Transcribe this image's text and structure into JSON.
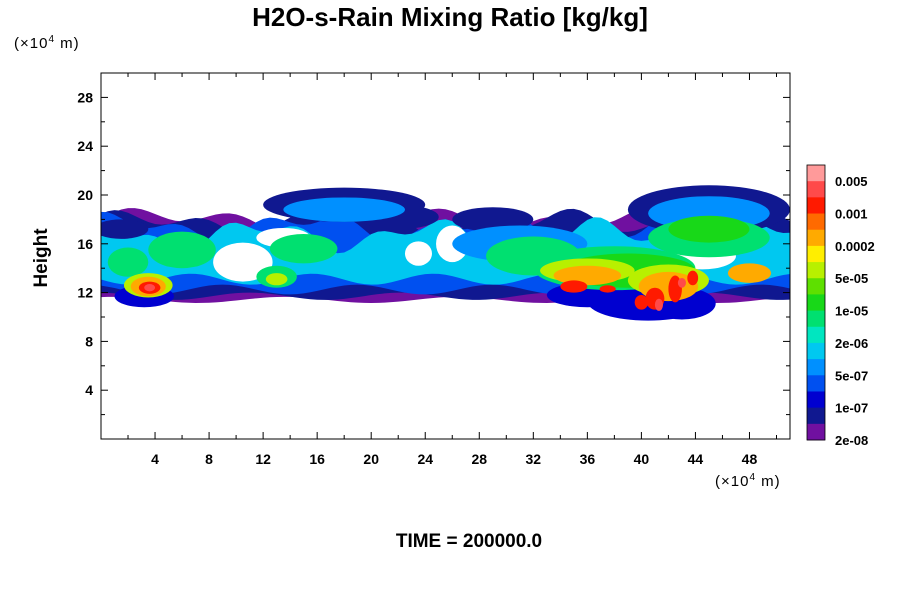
{
  "chart_data": {
    "type": "heatmap",
    "title": "H2O-s-Rain Mixing Ratio [kg/kg]",
    "xlabel": "",
    "ylabel": "Height",
    "x_unit": "(×10⁴ m)",
    "y_unit": "(×10⁴ m)",
    "xlim": [
      0,
      51
    ],
    "ylim": [
      0,
      30
    ],
    "x_ticks": [
      "4",
      "8",
      "12",
      "16",
      "20",
      "24",
      "28",
      "32",
      "36",
      "40",
      "44",
      "48"
    ],
    "y_ticks": [
      "4",
      "8",
      "12",
      "16",
      "20",
      "24",
      "28"
    ],
    "legend_placement": "right",
    "colorbar": {
      "labels": [
        "0.005",
        "0.001",
        "0.0002",
        "5e-05",
        "1e-05",
        "2e-06",
        "5e-07",
        "1e-07",
        "2e-08"
      ],
      "colors": [
        "#ff9a9a",
        "#ff4a4a",
        "#ff1a00",
        "#ff6a00",
        "#ffaa00",
        "#ffee00",
        "#b8f000",
        "#5ee000",
        "#18d818",
        "#00e070",
        "#00e6c0",
        "#00c8f0",
        "#0090ff",
        "#0050f0",
        "#0000d0",
        "#101890",
        "#7010a0"
      ]
    },
    "features": [
      {
        "desc": "cloud band base",
        "y_range": [
          11.5,
          18
        ]
      },
      {
        "desc": "strong cell",
        "x": 3.5,
        "y": 12.5
      },
      {
        "desc": "strong cells",
        "x": 41.5,
        "y": 11
      }
    ],
    "grid": false
  },
  "footer_text": "TIME = 200000.0"
}
